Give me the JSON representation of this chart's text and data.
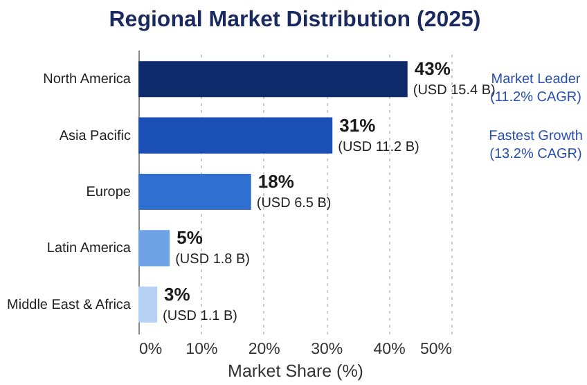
{
  "chart_data": {
    "type": "bar",
    "orientation": "horizontal",
    "title": "Regional Market Distribution (2025)",
    "xlabel": "Market Share (%)",
    "categories": [
      "North America",
      "Asia Pacific",
      "Europe",
      "Latin America",
      "Middle East & Africa"
    ],
    "values": [
      43,
      31,
      18,
      5,
      3
    ],
    "colors": [
      "#0d2a6b",
      "#1a4fb5",
      "#2f6fd0",
      "#6fa3e6",
      "#b5d2f5"
    ],
    "value_labels": [
      "43%\n(USD 15.4 B)",
      "31%\n(USD 11.2 B)",
      "18%\n(USD 6.5 B)",
      "5%\n(USD 1.8 B)",
      "3%\n(USD 1.1 B)"
    ],
    "xlim": [
      0,
      50
    ],
    "xticks": [
      {
        "value": 0,
        "label": "0%"
      },
      {
        "value": 10,
        "label": "10%"
      },
      {
        "value": 20,
        "label": "20%"
      },
      {
        "value": 30,
        "label": "30%"
      },
      {
        "value": 40,
        "label": "40%"
      },
      {
        "value": 50,
        "label": "50%"
      }
    ],
    "grid": "x",
    "annotations": [
      "Market Leader\n(11.2% CAGR)",
      "Fastest Growth\n(13.2% CAGR)"
    ]
  }
}
